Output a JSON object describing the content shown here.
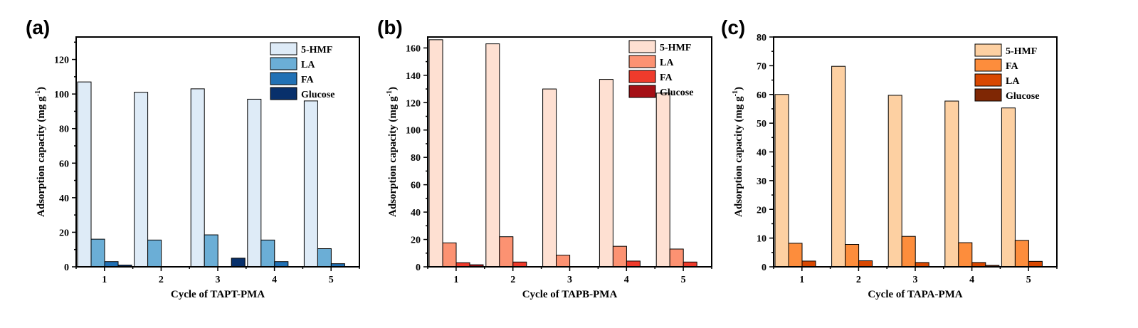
{
  "chart_data": [
    {
      "type": "bar",
      "panel_label": "(a)",
      "title": "",
      "xlabel": "Cycle of TAPT-PMA",
      "ylabel": "Adsorption capacity (mg g",
      "ylabel_sup": "-1",
      "ylabel_end": ")",
      "ylim": [
        0,
        133
      ],
      "yticks": [
        0,
        20,
        40,
        60,
        80,
        100,
        120
      ],
      "categories": [
        "1",
        "2",
        "3",
        "4",
        "5"
      ],
      "series": [
        {
          "name": "5-HMF",
          "color": "#deebf7",
          "values": [
            107,
            101,
            103,
            97,
            96
          ]
        },
        {
          "name": "LA",
          "color": "#6baed6",
          "values": [
            16,
            15.5,
            18.5,
            15.5,
            10.5
          ]
        },
        {
          "name": "FA",
          "color": "#2171b5",
          "values": [
            3,
            0,
            0,
            3,
            1.8
          ]
        },
        {
          "name": "Glucose",
          "color": "#08306b",
          "values": [
            1,
            0,
            5,
            0,
            0
          ]
        }
      ],
      "legend_position": "top-right"
    },
    {
      "type": "bar",
      "panel_label": "(b)",
      "title": "",
      "xlabel": "Cycle of TAPB-PMA",
      "ylabel": "Adsorption capacity (mg g",
      "ylabel_sup": "-1",
      "ylabel_end": ")",
      "ylim": [
        0,
        168
      ],
      "yticks": [
        0,
        20,
        40,
        60,
        80,
        100,
        120,
        140,
        160
      ],
      "categories": [
        "1",
        "2",
        "3",
        "4",
        "5"
      ],
      "series": [
        {
          "name": "5-HMF",
          "color": "#fee0d2",
          "values": [
            166,
            163,
            130,
            137,
            127
          ]
        },
        {
          "name": "LA",
          "color": "#fc9272",
          "values": [
            17.5,
            22,
            8.5,
            15,
            13
          ]
        },
        {
          "name": "FA",
          "color": "#ef3b2c",
          "values": [
            3,
            3.5,
            0,
            4.2,
            3.5
          ]
        },
        {
          "name": "Glucose",
          "color": "#a50f15",
          "values": [
            1.5,
            0,
            0,
            0,
            0
          ]
        }
      ],
      "legend_position": "top-right"
    },
    {
      "type": "bar",
      "panel_label": "(c)",
      "title": "",
      "xlabel": "Cycle of TAPA-PMA",
      "ylabel": "Adsorption capacity (mg g",
      "ylabel_sup": "-1",
      "ylabel_end": ")",
      "ylim": [
        0,
        80
      ],
      "yticks": [
        0,
        10,
        20,
        30,
        40,
        50,
        60,
        70,
        80
      ],
      "categories": [
        "1",
        "2",
        "3",
        "4",
        "5"
      ],
      "series": [
        {
          "name": "5-HMF",
          "color": "#fdd0a2",
          "values": [
            60,
            69.8,
            59.7,
            57.7,
            55.3
          ]
        },
        {
          "name": "FA",
          "color": "#fd8d3c",
          "values": [
            8.2,
            7.8,
            10.6,
            8.4,
            9.2
          ]
        },
        {
          "name": "LA",
          "color": "#d94801",
          "values": [
            2,
            2.1,
            1.5,
            1.5,
            1.9
          ]
        },
        {
          "name": "Glucose",
          "color": "#7f2704",
          "values": [
            0,
            0,
            0,
            0.5,
            0
          ]
        }
      ],
      "legend_position": "top-right"
    }
  ]
}
